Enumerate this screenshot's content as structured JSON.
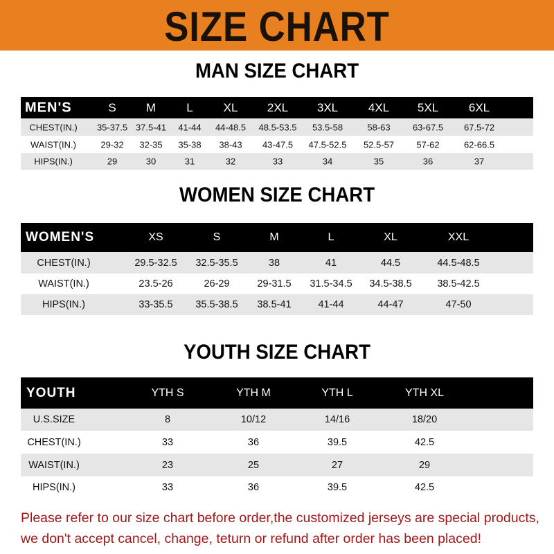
{
  "title": "SIZE CHART",
  "colors": {
    "banner": "#e8801f",
    "header_row": "#000000",
    "stripe": "#e6e6e6",
    "note": "#a01818"
  },
  "men": {
    "title": "MAN SIZE CHART",
    "header": [
      "MEN'S",
      "S",
      "M",
      "L",
      "XL",
      "2XL",
      "3XL",
      "4XL",
      "5XL",
      "6XL"
    ],
    "rows": [
      [
        "CHEST(IN.)",
        "35-37.5",
        "37.5-41",
        "41-44",
        "44-48.5",
        "48.5-53.5",
        "53.5-58",
        "58-63",
        "63-67.5",
        "67.5-72"
      ],
      [
        "WAIST(IN.)",
        "29-32",
        "32-35",
        "35-38",
        "38-43",
        "43-47.5",
        "47.5-52.5",
        "52.5-57",
        "57-62",
        "62-66.5"
      ],
      [
        "HIPS(IN.)",
        "29",
        "30",
        "31",
        "32",
        "33",
        "34",
        "35",
        "36",
        "37"
      ]
    ]
  },
  "women": {
    "title": "WOMEN SIZE CHART",
    "header": [
      "WOMEN'S",
      "XS",
      "S",
      "M",
      "L",
      "XL",
      "XXL"
    ],
    "rows": [
      [
        "CHEST(IN.)",
        "29.5-32.5",
        "32.5-35.5",
        "38",
        "41",
        "44.5",
        "44.5-48.5"
      ],
      [
        "WAIST(IN.)",
        "23.5-26",
        "26-29",
        "29-31.5",
        "31.5-34.5",
        "34.5-38.5",
        "38.5-42.5"
      ],
      [
        "HIPS(IN.)",
        "33-35.5",
        "35.5-38.5",
        "38.5-41",
        "41-44",
        "44-47",
        "47-50"
      ]
    ]
  },
  "youth": {
    "title": "YOUTH SIZE CHART",
    "header": [
      "YOUTH",
      "YTH S",
      "YTH M",
      "YTH L",
      "YTH XL"
    ],
    "rows": [
      [
        "U.S.SIZE",
        "8",
        "10/12",
        "14/16",
        "18/20"
      ],
      [
        "CHEST(IN.)",
        "33",
        "36",
        "39.5",
        "42.5"
      ],
      [
        "WAIST(IN.)",
        "23",
        "25",
        "27",
        "29"
      ],
      [
        "HIPS(IN.)",
        "33",
        "36",
        "39.5",
        "42.5"
      ]
    ]
  },
  "note": {
    "line1": "Please refer to our size chart before order,the customized jerseys are special products,",
    "line2": "we don't accept cancel, change, teturn or refund after order has been placed!"
  }
}
